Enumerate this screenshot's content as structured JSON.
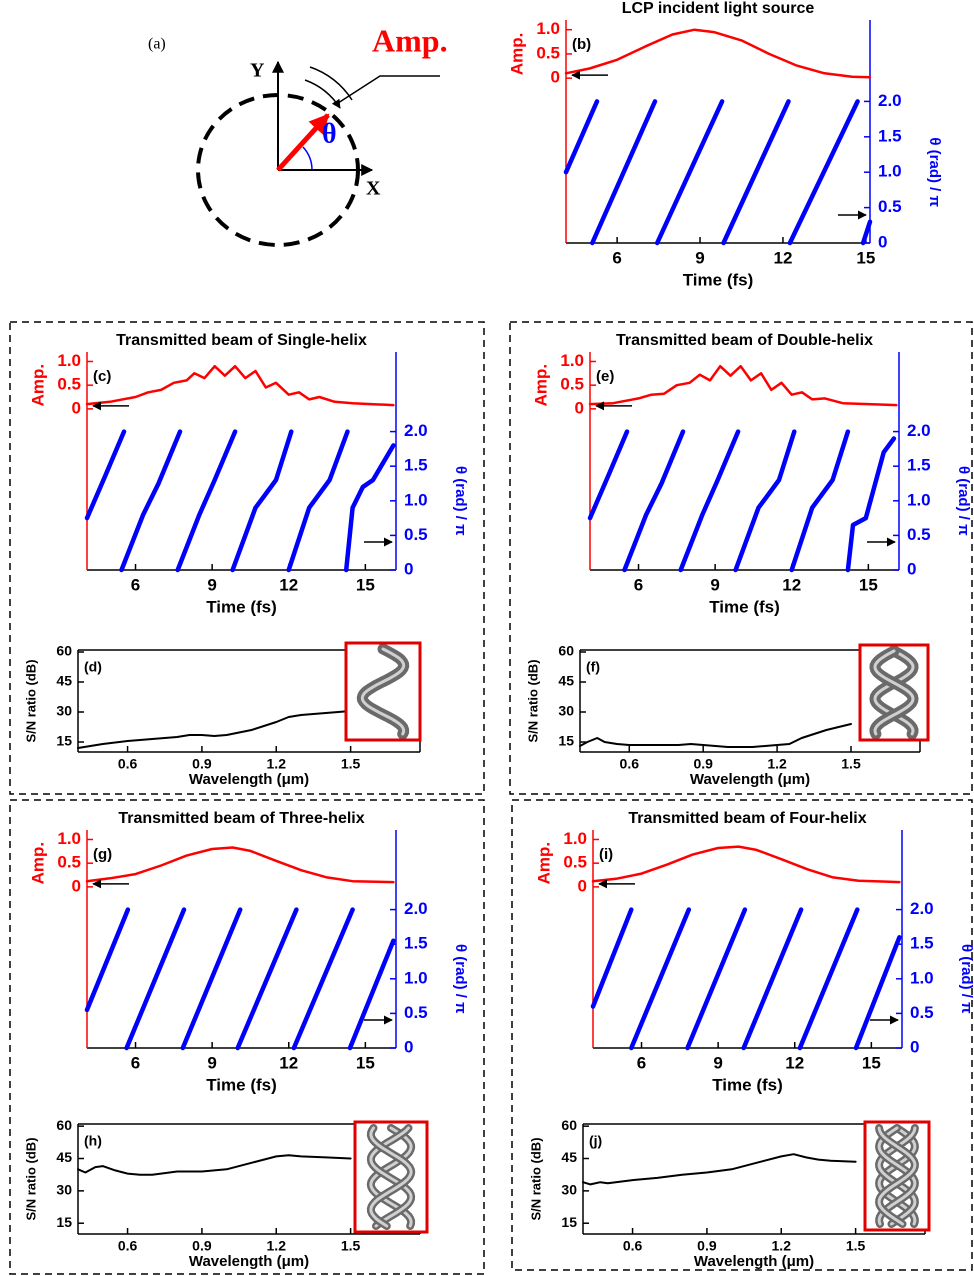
{
  "diagram": {
    "label": "(a)",
    "y_axis": "Y",
    "x_axis": "X",
    "vector": "Amp.",
    "angle": "θ"
  },
  "chart_data": [
    {
      "type": "line",
      "panel": "(b)",
      "title": "LCP incident light source",
      "xlabel": "Time (fs)",
      "ylabel": "Amp.",
      "y2label": "θ (rad) / π",
      "xlim": [
        4.15,
        15.15
      ],
      "xticks": [
        6,
        9,
        12,
        15
      ],
      "ylim": [
        -3.4,
        1.2
      ],
      "yticks": [
        0,
        0.5,
        {
          "value": 1,
          "label": "1.0"
        }
      ],
      "y2lim": [
        0,
        3.15
      ],
      "y2ticks": [
        0,
        0.5,
        {
          "value": 1,
          "label": "1.0"
        },
        1.5,
        {
          "value": 2,
          "label": "2.0"
        }
      ],
      "series": [
        {
          "color": "#ff0000",
          "x": [
            4.15,
            5,
            6,
            7,
            8,
            8.8,
            9.5,
            10.5,
            11.5,
            12.5,
            13.5,
            14.5,
            15.15
          ],
          "values": [
            0.1,
            0.2,
            0.38,
            0.65,
            0.9,
            1.0,
            0.95,
            0.78,
            0.5,
            0.26,
            0.1,
            0.03,
            0.02
          ]
        },
        {
          "color": "#0000ff",
          "axis": "y2",
          "x": [
            4.15,
            5.27,
            5.1,
            5.1,
            7.37,
            7.45,
            7.45,
            9.8,
            9.85,
            9.85,
            12.2,
            12.25,
            12.25,
            14.7,
            14.9,
            14.9,
            15.15
          ],
          "values": [
            1.0,
            2.0,
            null,
            0,
            2.0,
            null,
            0,
            2.0,
            null,
            0,
            2.0,
            null,
            0,
            2.0,
            null,
            0,
            0.3
          ]
        }
      ]
    },
    {
      "type": "line",
      "panel": "(c)",
      "title": "Transmitted beam of Single-helix",
      "xlabel": "Time (fs)",
      "ylabel": "Amp.",
      "y2label": "θ (rad) / π",
      "xlim": [
        4.1,
        16.2
      ],
      "xticks": [
        6,
        9,
        12,
        15
      ],
      "ylim": [
        -3.4,
        1.2
      ],
      "yticks": [
        0,
        0.5,
        {
          "value": 1,
          "label": "1.0"
        }
      ],
      "y2lim": [
        0,
        3.15
      ],
      "y2ticks": [
        0,
        0.5,
        {
          "value": 1,
          "label": "1.0"
        },
        1.5,
        {
          "value": 2,
          "label": "2.0"
        }
      ],
      "series": [
        {
          "color": "#ff0000",
          "x": [
            4.1,
            5,
            6,
            6.5,
            7,
            7.5,
            8,
            8.3,
            8.7,
            9.1,
            9.5,
            9.9,
            10.3,
            10.7,
            11.1,
            11.5,
            12,
            12.4,
            12.8,
            13.2,
            13.8,
            14.5,
            15.2,
            16.1
          ],
          "values": [
            0.1,
            0.15,
            0.25,
            0.35,
            0.4,
            0.55,
            0.6,
            0.75,
            0.65,
            0.9,
            0.7,
            0.9,
            0.65,
            0.8,
            0.45,
            0.55,
            0.3,
            0.35,
            0.2,
            0.25,
            0.15,
            0.12,
            0.1,
            0.08
          ]
        },
        {
          "color": "#0000ff",
          "axis": "y2",
          "x": [
            4.1,
            4.8,
            5.55,
            5.45,
            5.45,
            6.3,
            6.9,
            7.74,
            7.65,
            7.65,
            8.5,
            9.1,
            9.9,
            9.8,
            9.8,
            10.7,
            11.1,
            11.5,
            12.1,
            12.0,
            12.0,
            12.8,
            13.3,
            13.6,
            14.3,
            14.25,
            14.25,
            14.5,
            14.9,
            15.3,
            16.1
          ],
          "values": [
            0.75,
            1.35,
            2.0,
            null,
            0,
            0.8,
            1.25,
            2.0,
            null,
            0,
            0.8,
            1.3,
            2.0,
            null,
            0,
            0.9,
            1.1,
            1.3,
            2.0,
            null,
            0,
            0.9,
            1.15,
            1.3,
            2.0,
            null,
            0,
            0.9,
            1.2,
            1.3,
            1.8
          ]
        }
      ]
    },
    {
      "type": "line",
      "panel": "(d)",
      "xlabel": "Wavelength (μm)",
      "ylabel": "S/N ratio (dB)",
      "xlim": [
        0.4,
        1.78
      ],
      "xticks": [
        0.6,
        0.9,
        1.2,
        1.5
      ],
      "ylim": [
        10,
        61
      ],
      "yticks": [
        15,
        30,
        45,
        60
      ],
      "series": [
        {
          "color": "#000000",
          "x": [
            0.4,
            0.45,
            0.5,
            0.6,
            0.7,
            0.8,
            0.85,
            0.9,
            0.95,
            1.0,
            1.1,
            1.2,
            1.25,
            1.3,
            1.4,
            1.5
          ],
          "values": [
            12,
            13,
            14,
            15.5,
            16.5,
            17.5,
            18.5,
            18.5,
            18,
            18.5,
            21,
            25,
            27.5,
            28.5,
            29.5,
            30.5
          ]
        }
      ]
    },
    {
      "type": "line",
      "panel": "(e)",
      "title": "Transmitted beam of Double-helix",
      "xlabel": "Time (fs)",
      "ylabel": "Amp.",
      "y2label": "θ (rad) / π",
      "xlim": [
        4.1,
        16.2
      ],
      "xticks": [
        6,
        9,
        12,
        15
      ],
      "ylim": [
        -3.4,
        1.2
      ],
      "yticks": [
        0,
        0.5,
        {
          "value": 1,
          "label": "1.0"
        }
      ],
      "y2lim": [
        0,
        3.15
      ],
      "y2ticks": [
        0,
        0.5,
        {
          "value": 1,
          "label": "1.0"
        },
        1.5,
        {
          "value": 2,
          "label": "2.0"
        }
      ],
      "series": [
        {
          "color": "#ff0000",
          "x": [
            4.1,
            5,
            6,
            6.5,
            7,
            7.5,
            8,
            8.4,
            8.8,
            9.2,
            9.6,
            10,
            10.4,
            10.8,
            11.2,
            11.6,
            12,
            12.4,
            12.8,
            13.3,
            14,
            15,
            16.1
          ],
          "values": [
            0.1,
            0.12,
            0.22,
            0.3,
            0.32,
            0.5,
            0.55,
            0.72,
            0.6,
            0.9,
            0.7,
            0.9,
            0.6,
            0.75,
            0.4,
            0.55,
            0.3,
            0.35,
            0.2,
            0.22,
            0.12,
            0.1,
            0.08
          ]
        },
        {
          "color": "#0000ff",
          "axis": "y2",
          "x": [
            4.1,
            4.8,
            5.55,
            5.45,
            5.45,
            6.3,
            6.9,
            7.74,
            7.65,
            7.65,
            8.5,
            9.1,
            9.9,
            9.8,
            9.8,
            10.7,
            11.1,
            11.5,
            12.1,
            12.0,
            12.0,
            12.8,
            13.3,
            13.6,
            14.2,
            14.2,
            14.2,
            14.4,
            14.9,
            15.6,
            16.0
          ],
          "values": [
            0.75,
            1.35,
            2.0,
            null,
            0,
            0.8,
            1.25,
            2.0,
            null,
            0,
            0.8,
            1.3,
            2.0,
            null,
            0,
            0.9,
            1.1,
            1.3,
            2.0,
            null,
            0,
            0.9,
            1.15,
            1.3,
            2.0,
            null,
            0,
            0.65,
            0.75,
            1.7,
            1.9
          ]
        }
      ]
    },
    {
      "type": "line",
      "panel": "(f)",
      "xlabel": "Wavelength (μm)",
      "ylabel": "S/N ratio (dB)",
      "xlim": [
        0.4,
        1.78
      ],
      "xticks": [
        0.6,
        0.9,
        1.2,
        1.5
      ],
      "ylim": [
        10,
        61
      ],
      "yticks": [
        15,
        30,
        45,
        60
      ],
      "series": [
        {
          "color": "#000000",
          "x": [
            0.4,
            0.43,
            0.47,
            0.5,
            0.55,
            0.6,
            0.7,
            0.8,
            0.85,
            0.9,
            1.0,
            1.1,
            1.2,
            1.25,
            1.3,
            1.4,
            1.5
          ],
          "values": [
            13,
            15,
            17,
            15,
            14,
            13.5,
            13.5,
            13.5,
            14,
            13.5,
            12.5,
            12.5,
            13.5,
            14,
            17,
            21,
            24
          ]
        }
      ]
    },
    {
      "type": "line",
      "panel": "(g)",
      "title": "Transmitted beam of Three-helix",
      "xlabel": "Time (fs)",
      "ylabel": "Amp.",
      "y2label": "θ (rad) / π",
      "xlim": [
        4.1,
        16.2
      ],
      "xticks": [
        6,
        9,
        12,
        15
      ],
      "ylim": [
        -3.4,
        1.2
      ],
      "yticks": [
        0,
        0.5,
        {
          "value": 1,
          "label": "1.0"
        }
      ],
      "y2lim": [
        0,
        3.15
      ],
      "y2ticks": [
        0,
        0.5,
        {
          "value": 1,
          "label": "1.0"
        },
        1.5,
        {
          "value": 2,
          "label": "2.0"
        }
      ],
      "series": [
        {
          "color": "#ff0000",
          "x": [
            4.1,
            5,
            6,
            7,
            8,
            9,
            9.8,
            10.5,
            11.5,
            12.5,
            13.5,
            14.5,
            16.1
          ],
          "values": [
            0.12,
            0.18,
            0.27,
            0.45,
            0.66,
            0.8,
            0.83,
            0.76,
            0.55,
            0.35,
            0.2,
            0.12,
            0.1
          ]
        },
        {
          "color": "#0000ff",
          "axis": "y2",
          "x": [
            4.1,
            5.7,
            5.65,
            5.65,
            7.9,
            7.85,
            7.85,
            10.1,
            10.0,
            10.0,
            12.3,
            12.2,
            12.2,
            14.5,
            14.4,
            14.4,
            16.1
          ],
          "values": [
            0.55,
            2.0,
            null,
            0,
            2.0,
            null,
            0,
            2.0,
            null,
            0,
            2.0,
            null,
            0,
            2.0,
            null,
            0,
            1.55
          ]
        }
      ]
    },
    {
      "type": "line",
      "panel": "(h)",
      "xlabel": "Wavelength (μm)",
      "ylabel": "S/N ratio (dB)",
      "xlim": [
        0.4,
        1.78
      ],
      "xticks": [
        0.6,
        0.9,
        1.2,
        1.5
      ],
      "ylim": [
        10,
        61
      ],
      "yticks": [
        15,
        30,
        45,
        60
      ],
      "series": [
        {
          "color": "#000000",
          "x": [
            0.4,
            0.43,
            0.47,
            0.5,
            0.55,
            0.6,
            0.65,
            0.7,
            0.8,
            0.9,
            1.0,
            1.1,
            1.2,
            1.25,
            1.3,
            1.4,
            1.5
          ],
          "values": [
            40,
            38.5,
            41,
            41.5,
            39.5,
            38,
            37.5,
            37.5,
            39,
            39,
            40,
            43,
            46,
            46.5,
            46,
            45.5,
            45
          ]
        }
      ]
    },
    {
      "type": "line",
      "panel": "(i)",
      "title": "Transmitted beam of Four-helix",
      "xlabel": "Time (fs)",
      "ylabel": "Amp.",
      "y2label": "θ (rad) / π",
      "xlim": [
        4.1,
        16.2
      ],
      "xticks": [
        6,
        9,
        12,
        15
      ],
      "ylim": [
        -3.4,
        1.2
      ],
      "yticks": [
        0,
        0.5,
        {
          "value": 1,
          "label": "1.0"
        }
      ],
      "y2lim": [
        0,
        3.15
      ],
      "y2ticks": [
        0,
        0.5,
        {
          "value": 1,
          "label": "1.0"
        },
        1.5,
        {
          "value": 2,
          "label": "2.0"
        }
      ],
      "series": [
        {
          "color": "#ff0000",
          "x": [
            4.1,
            5,
            6,
            7,
            8,
            9,
            9.8,
            10.5,
            11.5,
            12.5,
            13.5,
            14.5,
            16.1
          ],
          "values": [
            0.12,
            0.17,
            0.28,
            0.47,
            0.68,
            0.82,
            0.85,
            0.78,
            0.58,
            0.37,
            0.2,
            0.13,
            0.1
          ]
        },
        {
          "color": "#0000ff",
          "axis": "y2",
          "x": [
            4.1,
            5.6,
            5.6,
            5.6,
            7.85,
            7.8,
            7.8,
            10.05,
            10.0,
            10.0,
            12.25,
            12.2,
            12.2,
            14.45,
            14.4,
            14.4,
            16.1
          ],
          "values": [
            0.6,
            2.0,
            null,
            0,
            2.0,
            null,
            0,
            2.0,
            null,
            0,
            2.0,
            null,
            0,
            2.0,
            null,
            0,
            1.6
          ]
        }
      ]
    },
    {
      "type": "line",
      "panel": "(j)",
      "xlabel": "Wavelength (μm)",
      "ylabel": "S/N ratio (dB)",
      "xlim": [
        0.4,
        1.78
      ],
      "xticks": [
        0.6,
        0.9,
        1.2,
        1.5
      ],
      "ylim": [
        10,
        61
      ],
      "yticks": [
        15,
        30,
        45,
        60
      ],
      "series": [
        {
          "color": "#000000",
          "x": [
            0.4,
            0.43,
            0.47,
            0.5,
            0.6,
            0.7,
            0.8,
            0.9,
            1.0,
            1.1,
            1.2,
            1.25,
            1.3,
            1.35,
            1.4,
            1.5
          ],
          "values": [
            34,
            33,
            34,
            33.5,
            35,
            36,
            37.5,
            38.5,
            40,
            43,
            46,
            47,
            45.5,
            44.5,
            44,
            43.5
          ]
        }
      ]
    }
  ]
}
